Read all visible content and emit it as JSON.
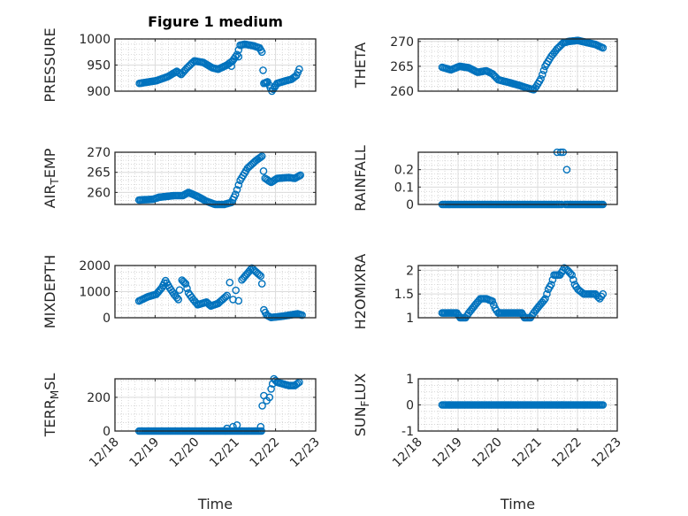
{
  "figure": {
    "marker_color": "#0072BD",
    "axis_color": "#262626"
  },
  "chart_data": [
    {
      "type": "scatter",
      "title": "Figure 1 medium",
      "ylabel": {
        "main": "PRESSURE",
        "sub": "",
        "rest": ""
      },
      "xlabel": "",
      "xlim": [
        0,
        5
      ],
      "ylim": [
        900,
        1000
      ],
      "yticks": [
        900,
        950,
        1000
      ],
      "ytick_labels": [
        "900",
        "950",
        "1000"
      ],
      "yminor": 10,
      "segments": [
        [
          [
            0.61,
            915
          ],
          [
            1.03,
            920
          ],
          [
            1.32,
            928
          ],
          [
            1.54,
            938
          ],
          [
            1.65,
            932
          ],
          [
            1.8,
            945
          ],
          [
            1.98,
            958
          ],
          [
            2.2,
            955
          ],
          [
            2.42,
            945
          ],
          [
            2.57,
            942
          ],
          [
            2.79,
            950
          ],
          [
            2.93,
            958
          ],
          [
            3.04,
            970
          ],
          [
            3.12,
            988
          ],
          [
            3.23,
            990
          ],
          [
            3.45,
            987
          ],
          [
            3.6,
            983
          ],
          [
            3.66,
            975
          ]
        ],
        [
          [
            3.71,
            915
          ],
          [
            3.8,
            918
          ],
          [
            3.91,
            900
          ],
          [
            4.04,
            915
          ],
          [
            4.26,
            920
          ],
          [
            4.4,
            923
          ],
          [
            4.52,
            930
          ],
          [
            4.59,
            942
          ]
        ]
      ],
      "outliers": [
        [
          2.9,
          948
        ],
        [
          3.08,
          966
        ],
        [
          3.69,
          940
        ]
      ]
    },
    {
      "type": "scatter",
      "title": "",
      "ylabel": {
        "main": "THETA",
        "sub": "",
        "rest": ""
      },
      "xlabel": "",
      "xlim": [
        0,
        5
      ],
      "ylim": [
        260,
        270.5
      ],
      "yticks": [
        260,
        265,
        270
      ],
      "ytick_labels": [
        "260",
        "265",
        "270"
      ],
      "yminor": 1,
      "segments": [
        [
          [
            0.6,
            264.8
          ],
          [
            0.82,
            264.3
          ],
          [
            1.04,
            265
          ],
          [
            1.27,
            264.7
          ],
          [
            1.49,
            263.8
          ],
          [
            1.71,
            264.1
          ],
          [
            1.86,
            263.5
          ],
          [
            2.01,
            262.3
          ],
          [
            2.3,
            261.7
          ],
          [
            2.53,
            261.2
          ],
          [
            2.75,
            260.6
          ],
          [
            2.9,
            260.3
          ],
          [
            2.97,
            261
          ],
          [
            3.08,
            262.5
          ],
          [
            3.19,
            265
          ],
          [
            3.34,
            267
          ],
          [
            3.49,
            268.5
          ],
          [
            3.64,
            269.7
          ],
          [
            3.78,
            270
          ],
          [
            4.01,
            270.2
          ],
          [
            4.23,
            269.8
          ],
          [
            4.45,
            269.4
          ],
          [
            4.64,
            268.7
          ]
        ]
      ],
      "outliers": []
    },
    {
      "type": "scatter",
      "title": "",
      "ylabel": {
        "main": "AIR",
        "sub": "T",
        "rest": "EMP"
      },
      "xlabel": "",
      "xlim": [
        0,
        5
      ],
      "ylim": [
        257,
        270
      ],
      "yticks": [
        260,
        265,
        270
      ],
      "ytick_labels": [
        "260",
        "265",
        "270"
      ],
      "yminor": 1,
      "segments": [
        [
          [
            0.6,
            258.1
          ],
          [
            0.95,
            258.3
          ],
          [
            1.1,
            258.8
          ],
          [
            1.47,
            259.2
          ],
          [
            1.69,
            259.2
          ],
          [
            1.83,
            260
          ],
          [
            2.06,
            259
          ],
          [
            2.28,
            257.8
          ],
          [
            2.5,
            257
          ],
          [
            2.72,
            257
          ],
          [
            2.9,
            257.5
          ],
          [
            3.0,
            259.5
          ],
          [
            3.12,
            263
          ],
          [
            3.3,
            266
          ],
          [
            3.52,
            268
          ],
          [
            3.66,
            269
          ]
        ],
        [
          [
            3.74,
            263.5
          ],
          [
            3.89,
            262.5
          ],
          [
            4.04,
            263.5
          ],
          [
            4.33,
            263.7
          ],
          [
            4.48,
            263.5
          ],
          [
            4.62,
            264.3
          ]
        ]
      ],
      "outliers": [
        [
          3.7,
          265.3
        ]
      ]
    },
    {
      "type": "scatter",
      "title": "",
      "ylabel": {
        "main": "RAINFALL",
        "sub": "",
        "rest": ""
      },
      "xlabel": "",
      "xlim": [
        0,
        5
      ],
      "ylim": [
        0,
        0.3
      ],
      "yticks": [
        0,
        0.1,
        0.2
      ],
      "ytick_labels": [
        "0",
        "0.1",
        "0.2"
      ],
      "yminor": 0.025,
      "segments": [
        [
          [
            0.6,
            0
          ],
          [
            3.55,
            0
          ]
        ],
        [
          [
            3.7,
            0
          ],
          [
            4.64,
            0
          ]
        ]
      ],
      "outliers": [
        [
          3.6,
          0
        ],
        [
          3.49,
          0.3
        ],
        [
          3.58,
          0.3
        ],
        [
          3.64,
          0.3
        ],
        [
          3.73,
          0.2
        ]
      ]
    },
    {
      "type": "scatter",
      "title": "",
      "ylabel": {
        "main": "MIXDEPTH",
        "sub": "",
        "rest": ""
      },
      "xlabel": "",
      "xlim": [
        0,
        5
      ],
      "ylim": [
        0,
        2000
      ],
      "yticks": [
        0,
        1000,
        2000
      ],
      "ytick_labels": [
        "0",
        "1000",
        "2000"
      ],
      "yminor": 250,
      "segments": [
        [
          [
            0.6,
            640
          ],
          [
            0.81,
            800
          ],
          [
            1.03,
            900
          ],
          [
            1.17,
            1150
          ],
          [
            1.26,
            1420
          ],
          [
            1.36,
            1150
          ],
          [
            1.47,
            900
          ],
          [
            1.58,
            700
          ]
        ],
        [
          [
            1.67,
            1440
          ],
          [
            1.76,
            1300
          ],
          [
            1.83,
            950
          ],
          [
            1.95,
            700
          ],
          [
            2.06,
            500
          ],
          [
            2.28,
            600
          ],
          [
            2.39,
            450
          ],
          [
            2.57,
            550
          ],
          [
            2.68,
            700
          ],
          [
            2.79,
            850
          ]
        ],
        [
          [
            3.16,
            1450
          ],
          [
            3.3,
            1700
          ],
          [
            3.41,
            1900
          ],
          [
            3.52,
            1750
          ],
          [
            3.63,
            1600
          ],
          [
            3.66,
            1300
          ]
        ],
        [
          [
            3.71,
            300
          ],
          [
            3.78,
            100
          ],
          [
            3.89,
            10
          ],
          [
            4.18,
            60
          ],
          [
            4.55,
            150
          ],
          [
            4.66,
            100
          ]
        ]
      ],
      "outliers": [
        [
          1.61,
          1060
        ],
        [
          2.86,
          1350
        ],
        [
          2.94,
          700
        ],
        [
          3.01,
          1050
        ],
        [
          3.08,
          650
        ]
      ]
    },
    {
      "type": "scatter",
      "title": "",
      "ylabel": {
        "main": "H2OMIXRA",
        "sub": "",
        "rest": ""
      },
      "xlabel": "",
      "xlim": [
        0,
        5
      ],
      "ylim": [
        1,
        2.1
      ],
      "yticks": [
        1,
        1.5,
        2
      ],
      "ytick_labels": [
        "1",
        "1.5",
        "2"
      ],
      "yminor": 0.1,
      "segments": [
        [
          [
            0.6,
            1.1
          ],
          [
            0.97,
            1.1
          ],
          [
            1.05,
            1.0
          ],
          [
            1.19,
            1.0
          ],
          [
            1.27,
            1.1
          ],
          [
            1.41,
            1.25
          ],
          [
            1.56,
            1.4
          ],
          [
            1.71,
            1.4
          ],
          [
            1.86,
            1.35
          ],
          [
            1.93,
            1.2
          ],
          [
            2.01,
            1.1
          ],
          [
            2.6,
            1.1
          ],
          [
            2.67,
            1.0
          ],
          [
            2.82,
            1.0
          ],
          [
            2.9,
            1.1
          ],
          [
            3.04,
            1.25
          ],
          [
            3.19,
            1.4
          ],
          [
            3.27,
            1.6
          ],
          [
            3.34,
            1.7
          ],
          [
            3.41,
            1.9
          ],
          [
            3.56,
            1.9
          ],
          [
            3.67,
            2.05
          ],
          [
            3.75,
            2.0
          ],
          [
            3.86,
            1.9
          ],
          [
            3.93,
            1.7
          ],
          [
            4.01,
            1.6
          ],
          [
            4.16,
            1.5
          ],
          [
            4.45,
            1.5
          ],
          [
            4.56,
            1.4
          ],
          [
            4.64,
            1.5
          ]
        ]
      ],
      "outliers": []
    },
    {
      "type": "scatter",
      "title": "",
      "ylabel": {
        "main": "TERR",
        "sub": "M",
        "rest": "SL"
      },
      "xlabel": "Time",
      "xlim": [
        0,
        5
      ],
      "ylim": [
        0,
        310
      ],
      "yticks": [
        0,
        200
      ],
      "ytick_labels": [
        "0",
        "200"
      ],
      "yminor": 50,
      "segments": [
        [
          [
            0.6,
            0
          ],
          [
            3.65,
            0
          ]
        ],
        [
          [
            3.85,
            200
          ],
          [
            3.89,
            250
          ],
          [
            3.96,
            310
          ],
          [
            4.04,
            290
          ],
          [
            4.18,
            280
          ],
          [
            4.33,
            270
          ],
          [
            4.48,
            270
          ],
          [
            4.59,
            290
          ]
        ]
      ],
      "outliers": [
        [
          2.79,
          15
        ],
        [
          2.94,
          25
        ],
        [
          3.04,
          35
        ],
        [
          3.63,
          25
        ],
        [
          3.67,
          150
        ],
        [
          3.71,
          210
        ],
        [
          3.78,
          180
        ]
      ]
    },
    {
      "type": "scatter",
      "title": "",
      "ylabel": {
        "main": "SUN",
        "sub": "F",
        "rest": "LUX"
      },
      "xlabel": "Time",
      "xlim": [
        0,
        5
      ],
      "ylim": [
        -1,
        1
      ],
      "yticks": [
        -1,
        0,
        1
      ],
      "ytick_labels": [
        "-1",
        "0",
        "1"
      ],
      "yminor": 0.25,
      "segments": [
        [
          [
            0.6,
            0
          ],
          [
            4.64,
            0
          ]
        ]
      ],
      "outliers": []
    }
  ],
  "xtick_labels": [
    "12/18",
    "12/19",
    "12/20",
    "12/21",
    "12/22",
    "12/23"
  ]
}
